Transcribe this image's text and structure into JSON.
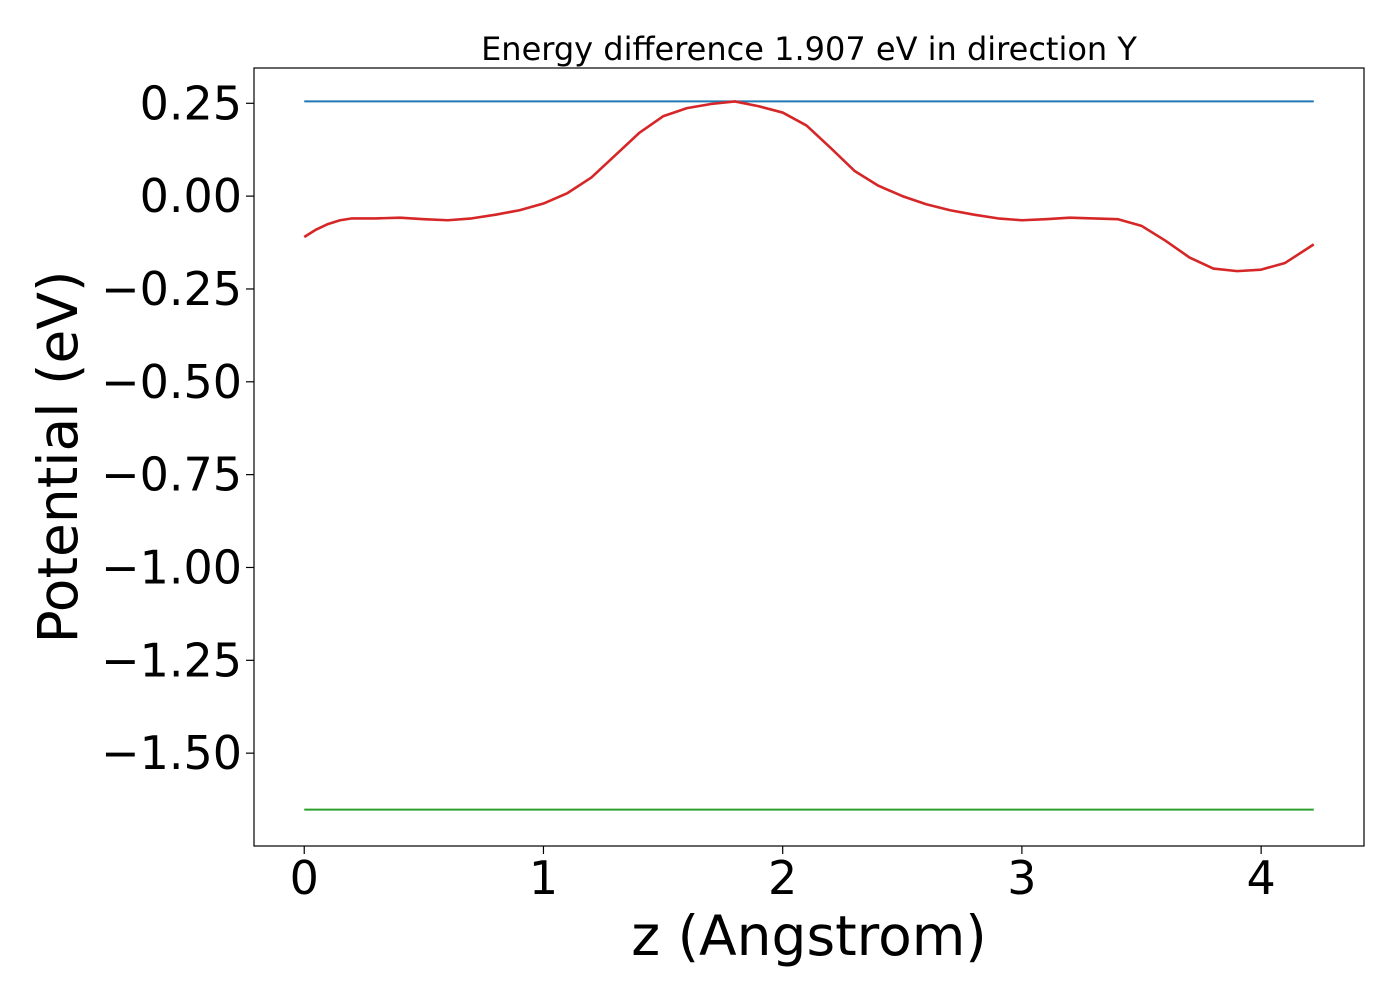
{
  "chart_data": {
    "type": "line",
    "title": "Energy difference 1.907 eV in direction Y",
    "xlabel": "z (Angstrom)",
    "ylabel": "Potential (eV)",
    "xlim": [
      -0.21,
      4.43
    ],
    "ylim": [
      -1.75,
      0.345
    ],
    "xticks": [
      0,
      1,
      2,
      3,
      4
    ],
    "xtick_labels": [
      "0",
      "1",
      "2",
      "3",
      "4"
    ],
    "yticks": [
      0.25,
      0.0,
      -0.25,
      -0.5,
      -0.75,
      -1.0,
      -1.25,
      -1.5
    ],
    "ytick_labels": [
      "0.25",
      "0.00",
      "−0.25",
      "−0.50",
      "−0.75",
      "−1.00",
      "−1.25",
      "−1.50"
    ],
    "grid": false,
    "legend": false,
    "series": [
      {
        "color": "#1f77b4",
        "x": [
          0,
          4.22
        ],
        "y": [
          0.255,
          0.255
        ]
      },
      {
        "color": "#2ca02c",
        "x": [
          0,
          4.22
        ],
        "y": [
          -1.652,
          -1.652
        ]
      },
      {
        "color": "#d62728",
        "x": [
          0.0,
          0.05,
          0.1,
          0.15,
          0.2,
          0.3,
          0.4,
          0.5,
          0.6,
          0.7,
          0.8,
          0.9,
          1.0,
          1.1,
          1.2,
          1.3,
          1.4,
          1.5,
          1.6,
          1.7,
          1.8,
          1.9,
          2.0,
          2.1,
          2.2,
          2.3,
          2.4,
          2.5,
          2.6,
          2.7,
          2.8,
          2.9,
          3.0,
          3.1,
          3.2,
          3.3,
          3.4,
          3.5,
          3.6,
          3.7,
          3.8,
          3.9,
          4.0,
          4.1,
          4.22
        ],
        "y": [
          -0.11,
          -0.09,
          -0.075,
          -0.065,
          -0.06,
          -0.06,
          -0.058,
          -0.062,
          -0.065,
          -0.06,
          -0.05,
          -0.038,
          -0.02,
          0.008,
          0.05,
          0.11,
          0.17,
          0.215,
          0.237,
          0.248,
          0.255,
          0.242,
          0.225,
          0.19,
          0.13,
          0.068,
          0.028,
          0.0,
          -0.022,
          -0.038,
          -0.05,
          -0.06,
          -0.065,
          -0.062,
          -0.058,
          -0.06,
          -0.062,
          -0.08,
          -0.12,
          -0.165,
          -0.195,
          -0.202,
          -0.198,
          -0.18,
          -0.13
        ]
      }
    ]
  }
}
